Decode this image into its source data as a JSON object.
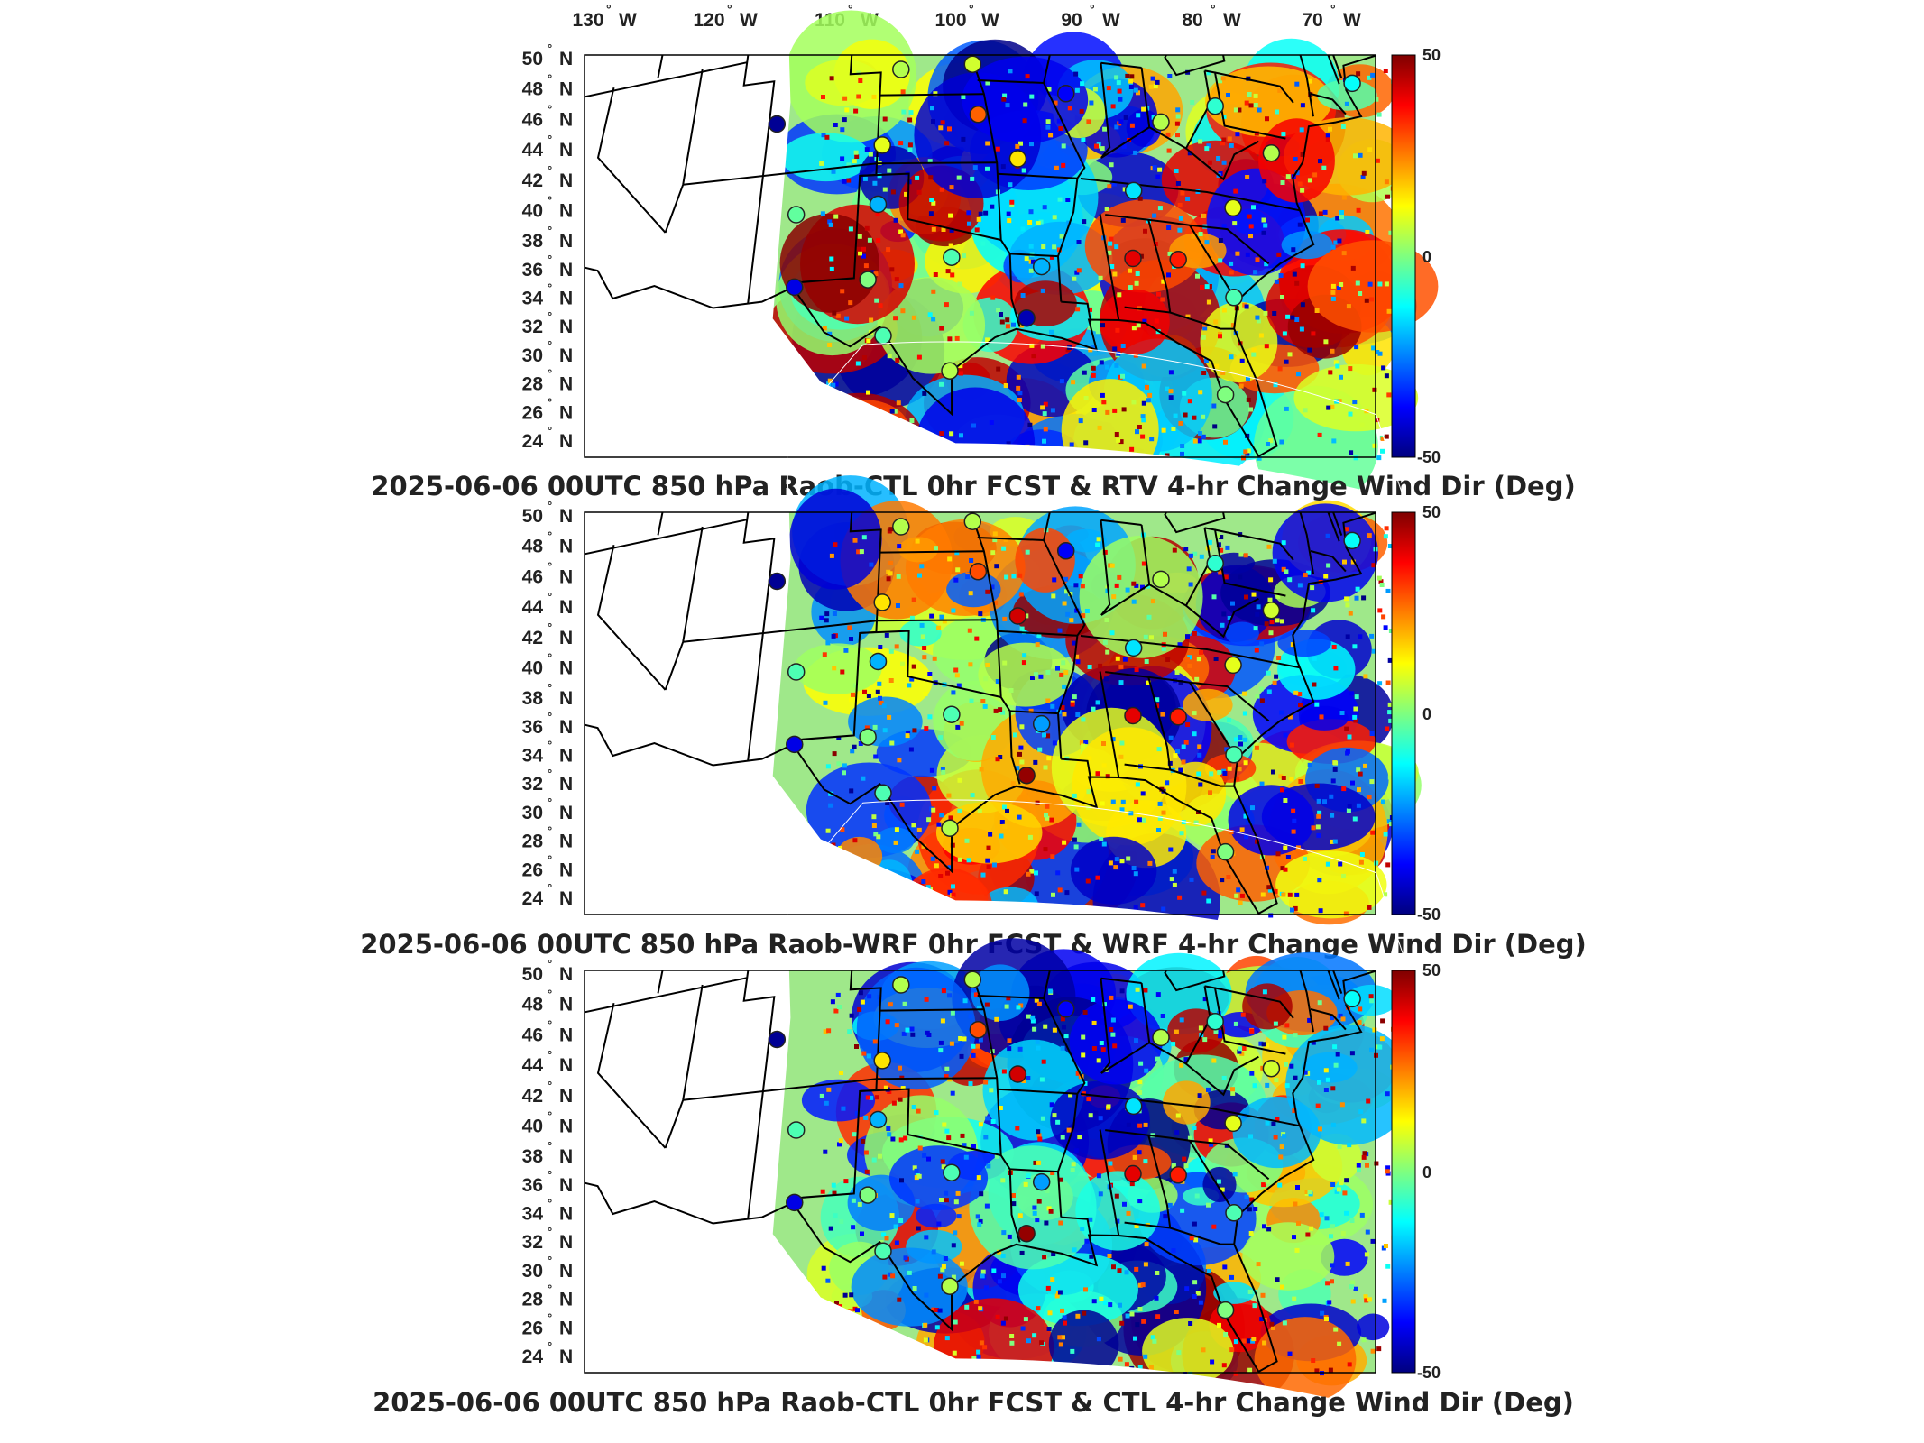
{
  "figure": {
    "lon_ticks": [
      "130",
      "120",
      "110",
      "100",
      "90",
      "80",
      "70"
    ],
    "lon_hemisphere": "W",
    "lat_ticks": [
      "50",
      "48",
      "46",
      "44",
      "42",
      "40",
      "38",
      "36",
      "34",
      "32",
      "30",
      "28",
      "26",
      "24"
    ],
    "lat_hemisphere": "N",
    "degree_symbol": "°",
    "colorbar": {
      "max_label": "50",
      "mid_label": "0",
      "min_label": "-50",
      "colors": [
        "#00007f",
        "#0000ff",
        "#007fff",
        "#00ffff",
        "#7fff7f",
        "#ffff00",
        "#ff7f00",
        "#ff0000",
        "#7f0000"
      ]
    },
    "panels": [
      {
        "id": "rtv",
        "title": "2025-06-06 00UTC 850 hPa Raob-CTL 0hr FCST & RTV 4-hr Change Wind Dir (Deg)",
        "seed": 11
      },
      {
        "id": "wrf",
        "title": "2025-06-06 00UTC 850 hPa Raob-WRF 0hr FCST & WRF 4-hr Change Wind Dir (Deg)",
        "seed": 29
      },
      {
        "id": "ctl",
        "title": "2025-06-06 00UTC 850 hPa Raob-CTL 0hr FCST & CTL 4-hr Change Wind Dir (Deg)",
        "seed": 47
      }
    ],
    "stations": [
      {
        "lon": -106.6,
        "lat": 48.2,
        "v": [
          -28,
          -28,
          -28
        ]
      },
      {
        "lon": -100.8,
        "lat": 46.8,
        "v": [
          -10,
          -15,
          -15
        ]
      },
      {
        "lon": -97.2,
        "lat": 45.6,
        "v": [
          -38,
          -30,
          -30
        ]
      },
      {
        "lon": -93.6,
        "lat": 48.6,
        "v": [
          48,
          45,
          45
        ]
      },
      {
        "lon": -108.4,
        "lat": 43.1,
        "v": [
          -25,
          -25,
          -25
        ]
      },
      {
        "lon": -103.2,
        "lat": 44.1,
        "v": [
          45,
          8,
          8
        ]
      },
      {
        "lon": -93.6,
        "lat": 44.9,
        "v": [
          -45,
          -40,
          -40
        ]
      },
      {
        "lon": -84.5,
        "lat": 45.0,
        "v": [
          -22,
          -12,
          -12
        ]
      },
      {
        "lon": -70.0,
        "lat": 43.0,
        "v": [
          -12,
          -12,
          -12
        ]
      },
      {
        "lon": -83.5,
        "lat": 42.7,
        "v": [
          -45,
          -45,
          -45
        ]
      },
      {
        "lon": -90.0,
        "lat": 40.2,
        "v": [
          -38,
          -38,
          -38
        ]
      },
      {
        "lon": -92.5,
        "lat": 41.8,
        "v": [
          35,
          38,
          38
        ]
      },
      {
        "lon": -96.0,
        "lat": 41.3,
        "v": [
          8,
          5,
          5
        ]
      },
      {
        "lon": -95.7,
        "lat": 39.1,
        "v": [
          28,
          30,
          30
        ]
      },
      {
        "lon": -100.7,
        "lat": 41.1,
        "v": [
          5,
          5,
          5
        ]
      },
      {
        "lon": -108.5,
        "lat": 39.1,
        "v": [
          -48,
          -48,
          -48
        ]
      },
      {
        "lon": -101.7,
        "lat": 37.8,
        "v": [
          10,
          15,
          15
        ]
      },
      {
        "lon": -93.3,
        "lat": 37.2,
        "v": [
          15,
          42,
          42
        ]
      },
      {
        "lon": -84.0,
        "lat": 39.4,
        "v": [
          5,
          5,
          5
        ]
      },
      {
        "lon": -80.2,
        "lat": 40.5,
        "v": [
          -8,
          -8,
          -8
        ]
      },
      {
        "lon": -77.0,
        "lat": 38.9,
        "v": [
          5,
          8,
          8
        ]
      },
      {
        "lon": -80.2,
        "lat": 36.1,
        "v": [
          10,
          10,
          10
        ]
      },
      {
        "lon": -86.3,
        "lat": 36.2,
        "v": [
          -15,
          -15,
          -15
        ]
      },
      {
        "lon": -101.8,
        "lat": 35.2,
        "v": [
          -20,
          -20,
          -20
        ]
      },
      {
        "lon": -106.7,
        "lat": 35.0,
        "v": [
          -3,
          -5,
          -5
        ]
      },
      {
        "lon": -97.4,
        "lat": 32.8,
        "v": [
          -5,
          -5,
          -5
        ]
      },
      {
        "lon": -92.2,
        "lat": 32.5,
        "v": [
          -20,
          -22,
          -22
        ]
      },
      {
        "lon": -86.8,
        "lat": 33.2,
        "v": [
          40,
          40,
          40
        ]
      },
      {
        "lon": -84.1,
        "lat": 33.4,
        "v": [
          35,
          35,
          35
        ]
      },
      {
        "lon": -81.1,
        "lat": 32.1,
        "v": [
          -5,
          -5,
          -5
        ]
      },
      {
        "lon": -102.2,
        "lat": 31.9,
        "v": [
          0,
          0,
          0
        ]
      },
      {
        "lon": -106.4,
        "lat": 31.8,
        "v": [
          -40,
          -40,
          -40
        ]
      },
      {
        "lon": -93.2,
        "lat": 30.2,
        "v": [
          -45,
          48,
          48
        ]
      },
      {
        "lon": -101.2,
        "lat": 29.4,
        "v": [
          -5,
          -5,
          -5
        ]
      },
      {
        "lon": -97.5,
        "lat": 27.8,
        "v": [
          5,
          5,
          5
        ]
      },
      {
        "lon": -82.5,
        "lat": 27.7,
        "v": [
          0,
          0,
          0
        ]
      }
    ]
  }
}
